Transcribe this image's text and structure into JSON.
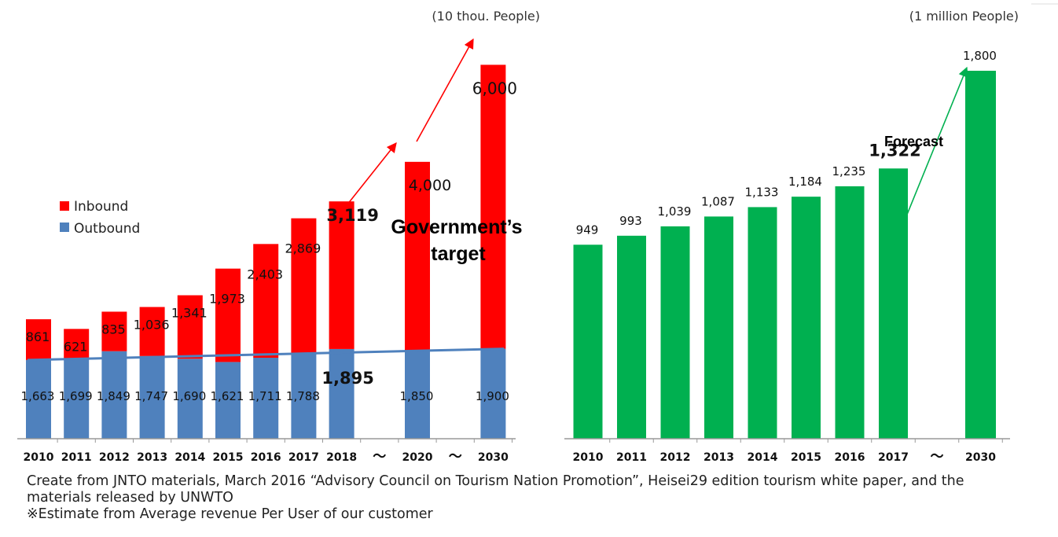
{
  "chart_data": [
    {
      "type": "bar",
      "stacked": true,
      "unit_label": "(10 thou. People)",
      "categories": [
        "2010",
        "2011",
        "2012",
        "2013",
        "2014",
        "2015",
        "2016",
        "2017",
        "2018",
        "～",
        "2020",
        "～",
        "2030"
      ],
      "series": [
        {
          "name": "Outbound",
          "color": "#4f81bd",
          "values": [
            1663,
            1699,
            1849,
            1747,
            1690,
            1621,
            1711,
            1788,
            1895,
            null,
            1850,
            null,
            1900
          ]
        },
        {
          "name": "Inbound",
          "color": "#ff0000",
          "values": [
            861,
            621,
            835,
            1036,
            1341,
            1973,
            2403,
            2869,
            3119,
            null,
            4000,
            null,
            6000
          ]
        }
      ],
      "outbound_labels": [
        "1,663",
        "1,699",
        "1,849",
        "1,747",
        "1,690",
        "1,621",
        "1,711",
        "1,788",
        "1,895",
        "",
        "1,850",
        "",
        "1,900"
      ],
      "inbound_labels": [
        "861",
        "621",
        "835",
        "1,036",
        "1,341",
        "1,973",
        "2,403",
        "2,869",
        "3,119",
        "",
        "4,000",
        "",
        "6,000"
      ],
      "annotation": "Government’s target",
      "legend_position": "top-left",
      "grid": false
    },
    {
      "type": "bar",
      "unit_label": "(1 million People)",
      "categories": [
        "2010",
        "2011",
        "2012",
        "2013",
        "2014",
        "2015",
        "2016",
        "2017",
        "～",
        "2030"
      ],
      "series": [
        {
          "name": "",
          "color": "#00b050",
          "values": [
            949,
            993,
            1039,
            1087,
            1133,
            1184,
            1235,
            1322,
            null,
            1800
          ]
        }
      ],
      "value_labels": [
        "949",
        "993",
        "1,039",
        "1,087",
        "1,133",
        "1,184",
        "1,235",
        "1,322",
        "",
        "1,800"
      ],
      "annotation": "Forecast",
      "grid": false
    }
  ],
  "footer": {
    "line1": "Create from JNTO materials, March 2016 “Advisory Council on Tourism Nation Promotion”, Heisei29 edition tourism white paper, and the",
    "line2": "materials released by UNWTO",
    "line3": "※Estimate from Average revenue Per User of our customer"
  }
}
